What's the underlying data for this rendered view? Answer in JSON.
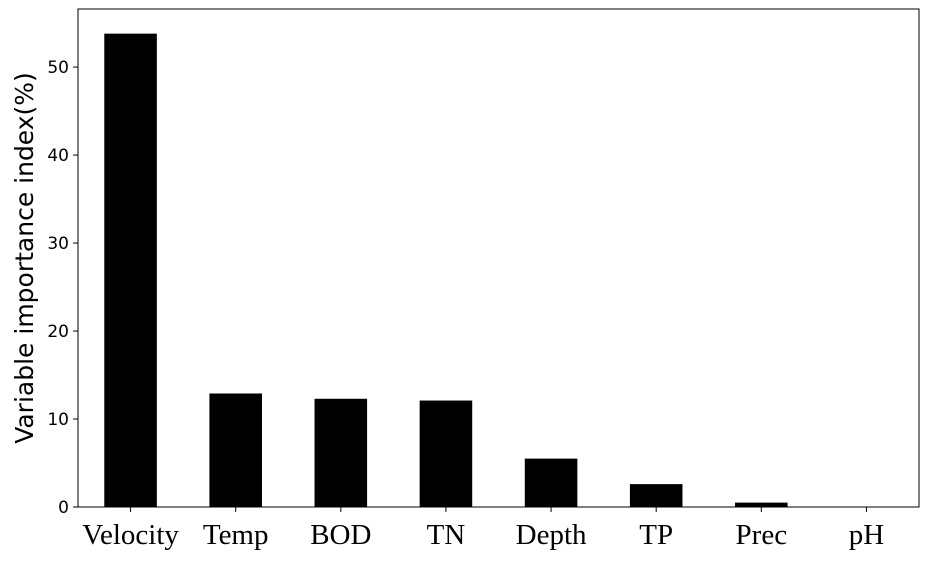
{
  "chart_data": {
    "type": "bar",
    "title": "",
    "xlabel": "",
    "ylabel": "Variable importance index(%)",
    "categories": [
      "Velocity",
      "Temp",
      "BOD",
      "TN",
      "Depth",
      "TP",
      "Prec",
      "pH"
    ],
    "values": [
      53.8,
      12.9,
      12.3,
      12.1,
      5.5,
      2.6,
      0.5,
      0.0
    ],
    "ylim": [
      0,
      56.6
    ],
    "yticks": [
      0,
      10,
      20,
      30,
      40,
      50
    ],
    "grid": false,
    "legend": "none",
    "bar_color": "#000000"
  }
}
